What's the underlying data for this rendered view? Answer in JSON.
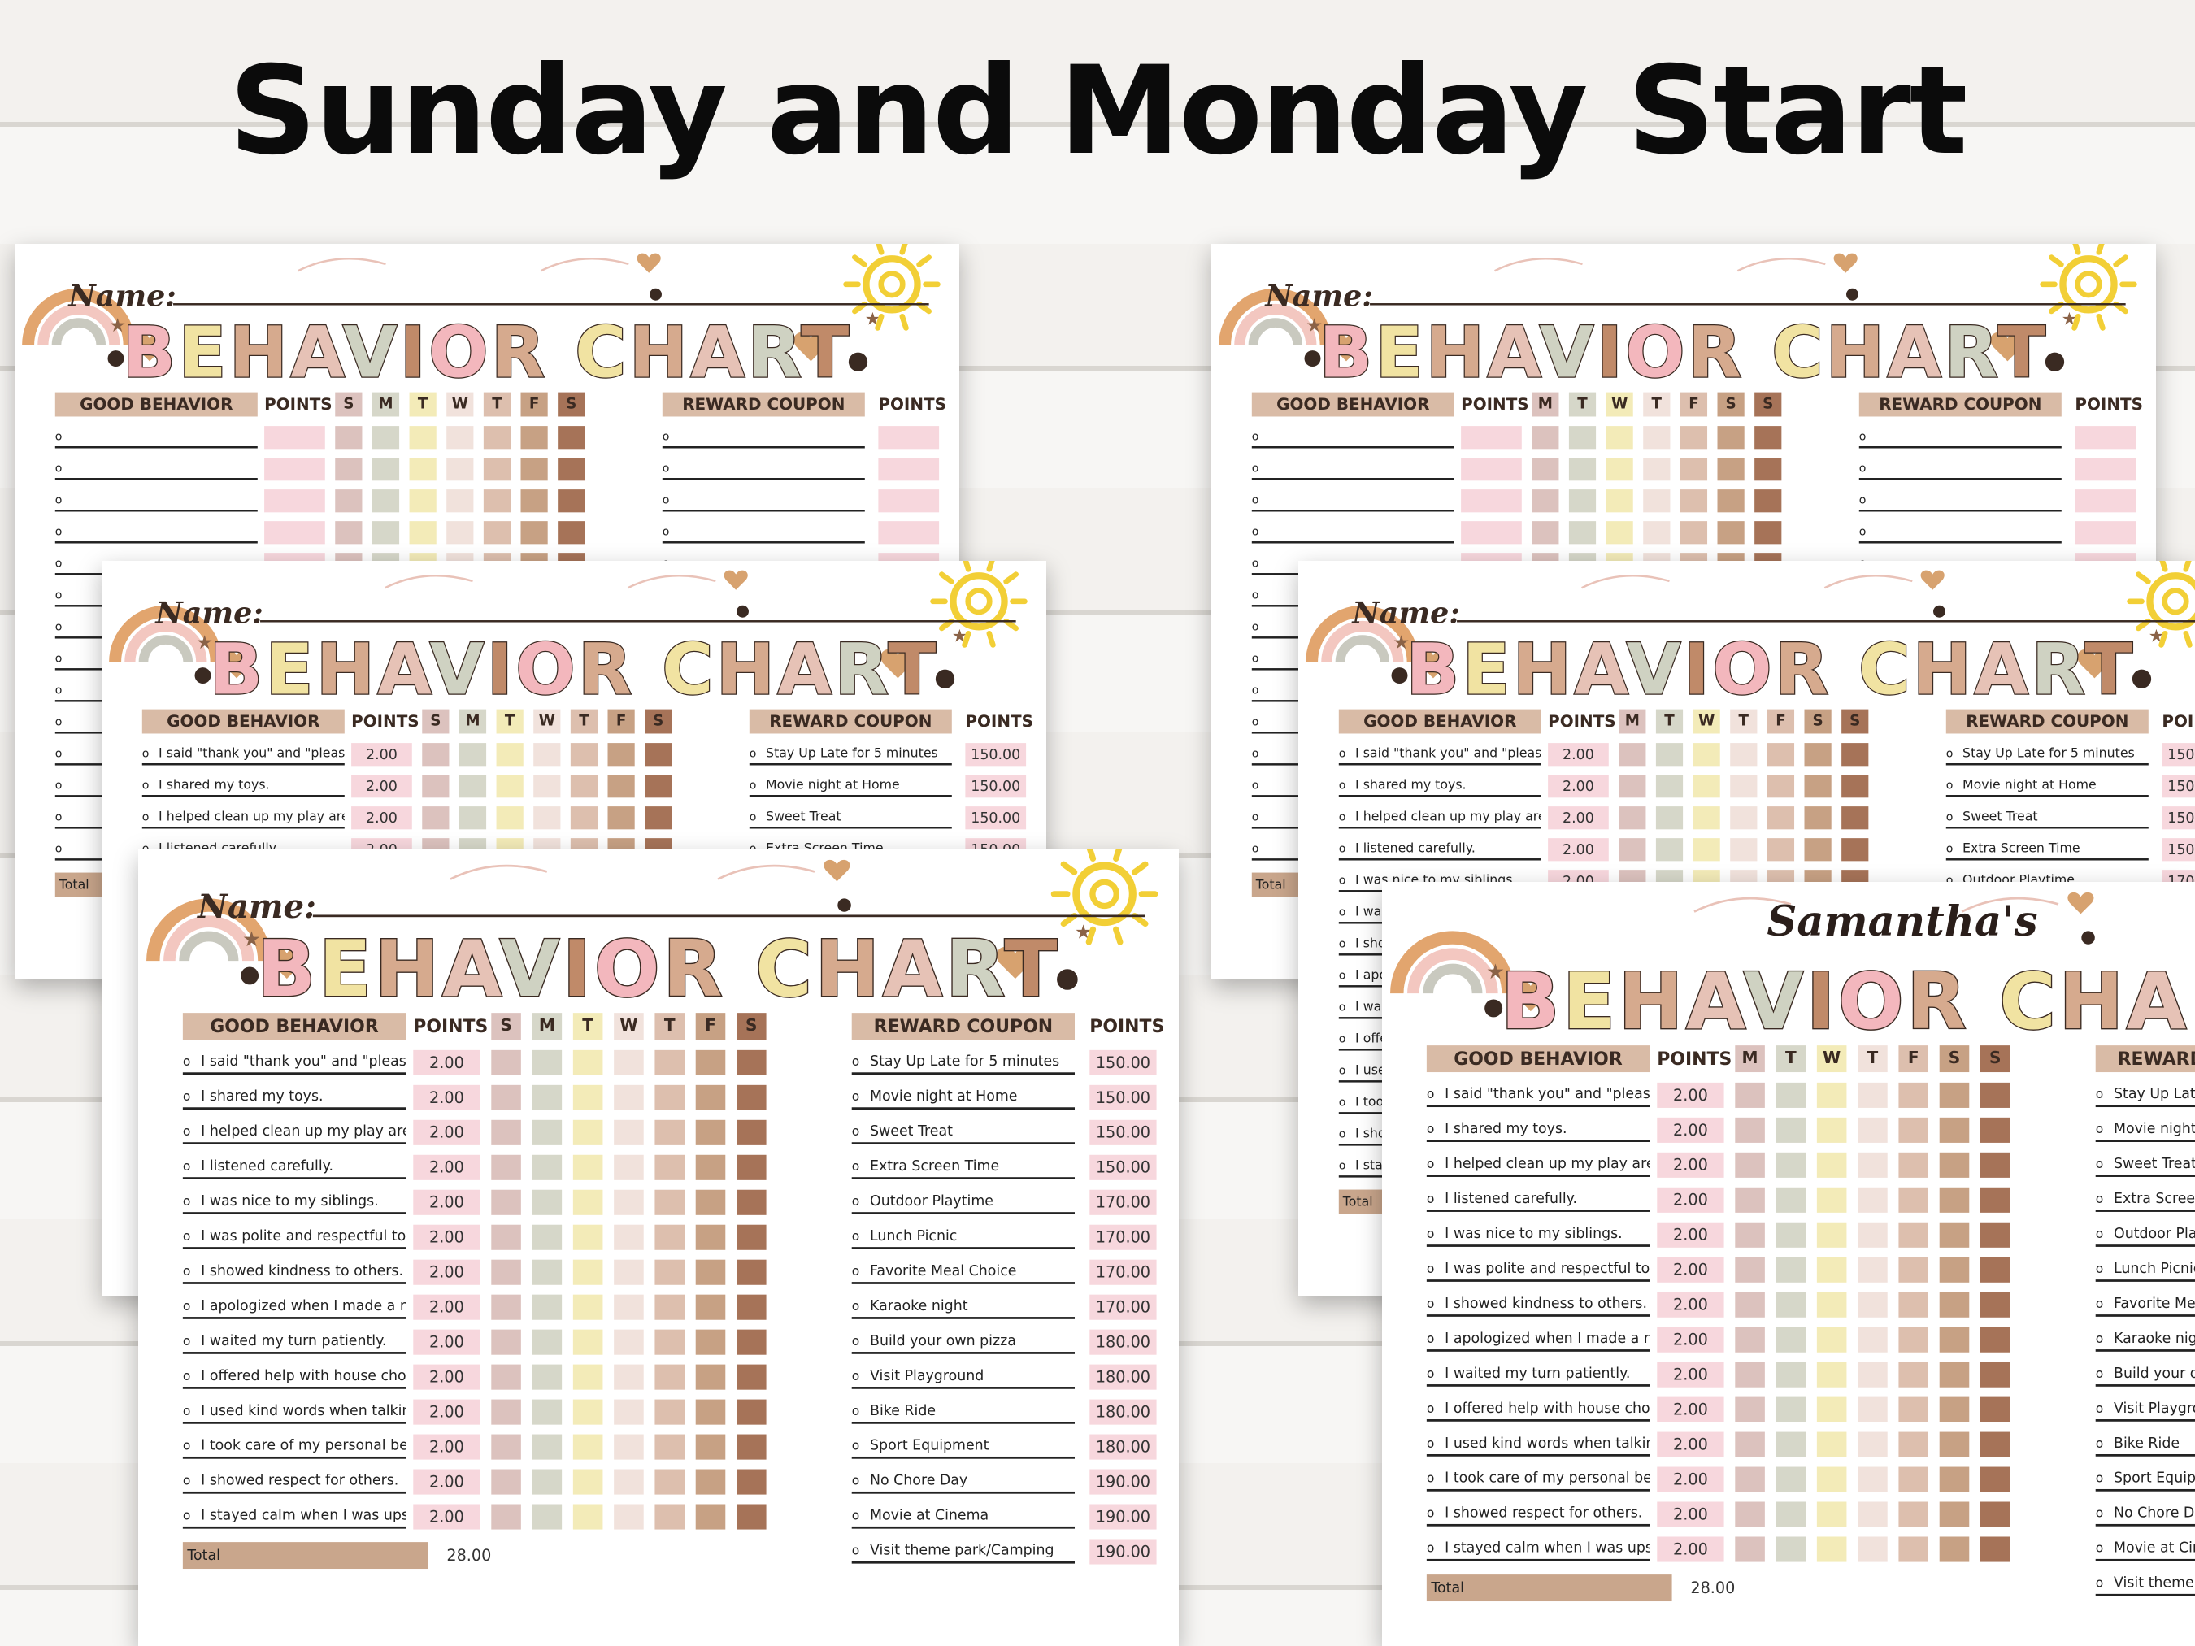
{
  "heading": "Sunday and Monday Start",
  "colors": {
    "title_pink": "#f3b7bd",
    "title_yellow": "#f1e3a2",
    "title_tan": "#d6aa8e",
    "title_sage": "#cfd2c2",
    "title_rose": "#e6c2b6",
    "title_brown": "#c08a69",
    "day_cols": [
      "#f5cdd2",
      "#dcc2be",
      "#d6d7c9",
      "#f3ebb8",
      "#f1e2dc",
      "#ddbfae",
      "#c7a184",
      "#a67358"
    ],
    "sun": "#f2cf36",
    "heart": "#d7a26f",
    "rainbow": [
      "#e2a56e",
      "#f3c7c0",
      "#c9c9bf"
    ]
  },
  "labels": {
    "name": "Name:",
    "chart_title": "BEHAVIOR CHART",
    "good_behavior": "GOOD BEHAVIOR",
    "points": "POINTS",
    "reward_coupon": "REWARD COUPON",
    "total": "Total",
    "owner": "Samantha's"
  },
  "days_sunday": [
    "S",
    "M",
    "T",
    "W",
    "T",
    "F",
    "S"
  ],
  "days_monday": [
    "M",
    "T",
    "W",
    "T",
    "F",
    "S",
    "S"
  ],
  "behaviors": [
    {
      "text": "I said \"thank you\" and \"please\".",
      "points": "2.00"
    },
    {
      "text": "I shared my toys.",
      "points": "2.00"
    },
    {
      "text": "I helped clean up my play area.",
      "points": "2.00"
    },
    {
      "text": "I listened carefully.",
      "points": "2.00"
    },
    {
      "text": "I was nice to my siblings.",
      "points": "2.00"
    },
    {
      "text": "I was polite and respectful to adults.",
      "points": "2.00"
    },
    {
      "text": "I showed kindness to others.",
      "points": "2.00"
    },
    {
      "text": "I apologized when I made a mistake.",
      "points": "2.00"
    },
    {
      "text": "I waited my turn patiently.",
      "points": "2.00"
    },
    {
      "text": "I offered help with house chores.",
      "points": "2.00"
    },
    {
      "text": "I used kind words when talking.",
      "points": "2.00"
    },
    {
      "text": "I took care of my personal belongings.",
      "points": "2.00"
    },
    {
      "text": "I showed respect for others.",
      "points": "2.00"
    },
    {
      "text": "I stayed calm when I was upset.",
      "points": "2.00"
    }
  ],
  "total_points": "28.00",
  "rewards": [
    {
      "text": "Stay Up Late for 5 minutes",
      "points": "150.00"
    },
    {
      "text": "Movie night at Home",
      "points": "150.00"
    },
    {
      "text": "Sweet Treat",
      "points": "150.00"
    },
    {
      "text": "Extra Screen Time",
      "points": "150.00"
    },
    {
      "text": "Outdoor Playtime",
      "points": "170.00"
    },
    {
      "text": "Lunch Picnic",
      "points": "170.00"
    },
    {
      "text": "Favorite Meal Choice",
      "points": "170.00"
    },
    {
      "text": "Karaoke night",
      "points": "170.00"
    },
    {
      "text": "Build your own pizza",
      "points": "180.00"
    },
    {
      "text": "Visit Playground",
      "points": "180.00"
    },
    {
      "text": "Bike Ride",
      "points": "180.00"
    },
    {
      "text": "Sport Equipment",
      "points": "180.00"
    },
    {
      "text": "No Chore Day",
      "points": "190.00"
    },
    {
      "text": "Movie at Cinema",
      "points": "190.00"
    },
    {
      "text": "Visit theme park/Camping",
      "points": "190.00"
    }
  ],
  "sheets": [
    {
      "id": "sun-blank",
      "start": "sunday",
      "filled": false,
      "named": false
    },
    {
      "id": "sun-partial",
      "start": "sunday",
      "filled": true,
      "named": false
    },
    {
      "id": "sun-full",
      "start": "sunday",
      "filled": true,
      "named": false
    },
    {
      "id": "mon-blank",
      "start": "monday",
      "filled": false,
      "named": false
    },
    {
      "id": "mon-partial",
      "start": "monday",
      "filled": true,
      "named": false
    },
    {
      "id": "mon-named",
      "start": "monday",
      "filled": true,
      "named": true
    }
  ]
}
